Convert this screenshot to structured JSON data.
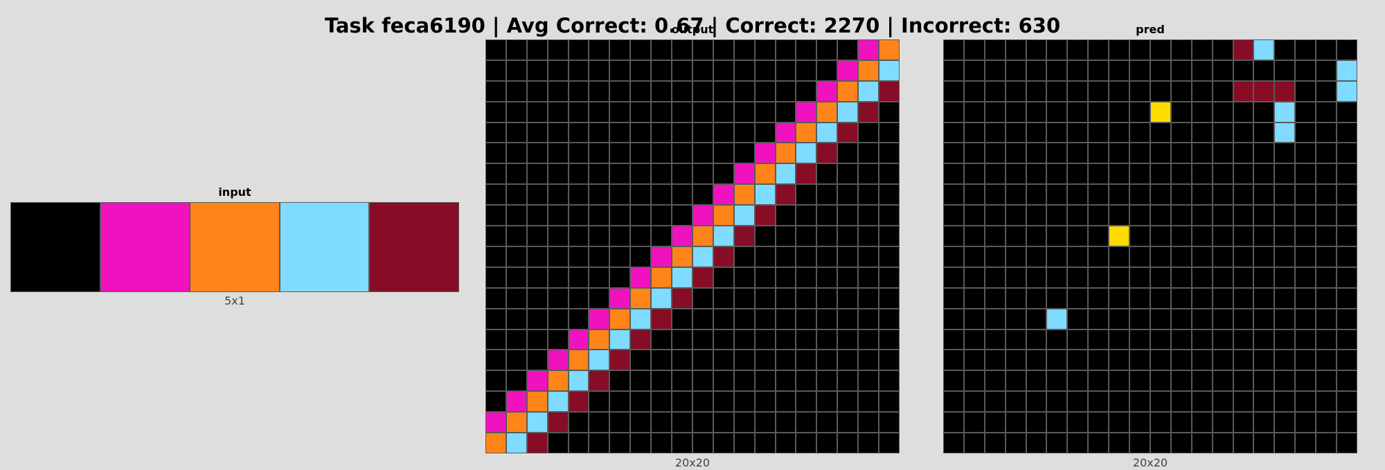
{
  "title": "Task feca6190 | Avg Correct: 0.67 | Correct: 2270 | Incorrect: 630",
  "palette": {
    "0": "#000000",
    "4": "#ffdc00",
    "6": "#f012be",
    "7": "#ff851b",
    "8": "#7fdbff",
    "9": "#870c25"
  },
  "panels": {
    "input": {
      "label": "input",
      "size_label": "5x1",
      "rows": 1,
      "cols": 5,
      "cells": [
        [
          0,
          6,
          7,
          8,
          9
        ]
      ]
    },
    "output": {
      "label": "output",
      "size_label": "20x20",
      "rows": 20,
      "cols": 20,
      "diagonals": [
        {
          "color": 6,
          "offset": 18
        },
        {
          "color": 7,
          "offset": 19
        },
        {
          "color": 8,
          "offset": 20
        },
        {
          "color": 9,
          "offset": 21
        }
      ]
    },
    "pred": {
      "label": "pred",
      "size_label": "20x20",
      "rows": 20,
      "cols": 20,
      "nonzero": [
        {
          "r": 0,
          "c": 14,
          "v": 9
        },
        {
          "r": 0,
          "c": 15,
          "v": 8
        },
        {
          "r": 1,
          "c": 19,
          "v": 8
        },
        {
          "r": 2,
          "c": 14,
          "v": 9
        },
        {
          "r": 2,
          "c": 15,
          "v": 9
        },
        {
          "r": 2,
          "c": 16,
          "v": 9
        },
        {
          "r": 2,
          "c": 19,
          "v": 8
        },
        {
          "r": 3,
          "c": 10,
          "v": 4
        },
        {
          "r": 3,
          "c": 16,
          "v": 8
        },
        {
          "r": 4,
          "c": 16,
          "v": 8
        },
        {
          "r": 9,
          "c": 8,
          "v": 4
        },
        {
          "r": 13,
          "c": 5,
          "v": 8
        }
      ]
    }
  }
}
